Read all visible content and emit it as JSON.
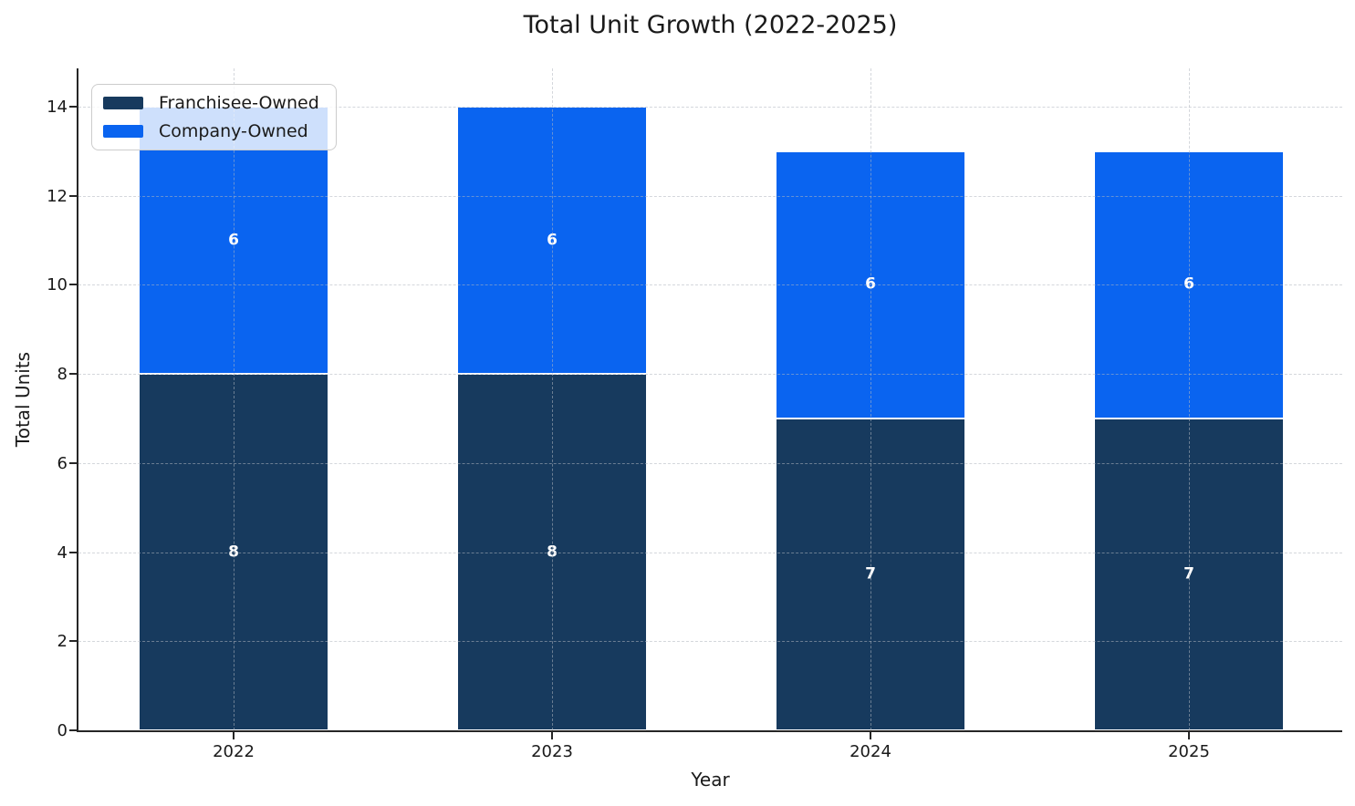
{
  "chart_data": {
    "type": "bar",
    "stacked": true,
    "title": "Total Unit Growth (2022-2025)",
    "xlabel": "Year",
    "ylabel": "Total Units",
    "categories": [
      "2022",
      "2023",
      "2024",
      "2025"
    ],
    "series": [
      {
        "name": "Franchisee-Owned",
        "color": "#173A5E",
        "values": [
          8,
          8,
          7,
          7
        ]
      },
      {
        "name": "Company-Owned",
        "color": "#0A64F0",
        "values": [
          6,
          6,
          6,
          6
        ]
      }
    ],
    "totals": [
      14,
      14,
      13,
      13
    ],
    "yticks": [
      0,
      2,
      4,
      6,
      8,
      10,
      12,
      14
    ],
    "ylim": [
      0,
      14.86
    ],
    "grid": true,
    "grid_style": "dashed",
    "legend_position": "upper left",
    "bar_label_color": "#FFFFFF",
    "bar_edge_color": "#FFFFFF",
    "background_color": "#FFFFFF"
  }
}
